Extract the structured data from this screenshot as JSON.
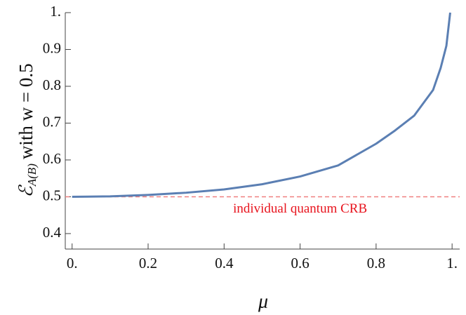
{
  "chart_data": {
    "type": "line",
    "x_label": "μ",
    "y_label": {
      "symbol": "ℰ",
      "subscript": "A(B)",
      "rest": "with w = 0.5"
    },
    "x": [
      0,
      0.1,
      0.2,
      0.3,
      0.4,
      0.5,
      0.6,
      0.7,
      0.8,
      0.85,
      0.9,
      0.95,
      0.97,
      0.985,
      0.995
    ],
    "series": [
      {
        "name": null,
        "color": "#5b7fb3",
        "values": [
          0.5,
          0.501,
          0.505,
          0.511,
          0.52,
          0.534,
          0.555,
          0.585,
          0.644,
          0.68,
          0.72,
          0.79,
          0.85,
          0.91,
          1.0
        ]
      }
    ],
    "reference_line": {
      "value": 0.5,
      "label": "individual quantum CRB",
      "color": "#f08080",
      "label_color": "#e8141e"
    },
    "xlim": [
      -0.018,
      1.02
    ],
    "ylim": [
      0.358,
      1.0
    ],
    "xticks": [
      {
        "value": 0,
        "label": "0."
      },
      0.2,
      0.4,
      0.6,
      0.8,
      {
        "value": 1,
        "label": "1."
      }
    ],
    "yticks": [
      0.4,
      0.5,
      0.6,
      0.7,
      0.8,
      0.9,
      {
        "value": 1,
        "label": "1."
      }
    ]
  }
}
